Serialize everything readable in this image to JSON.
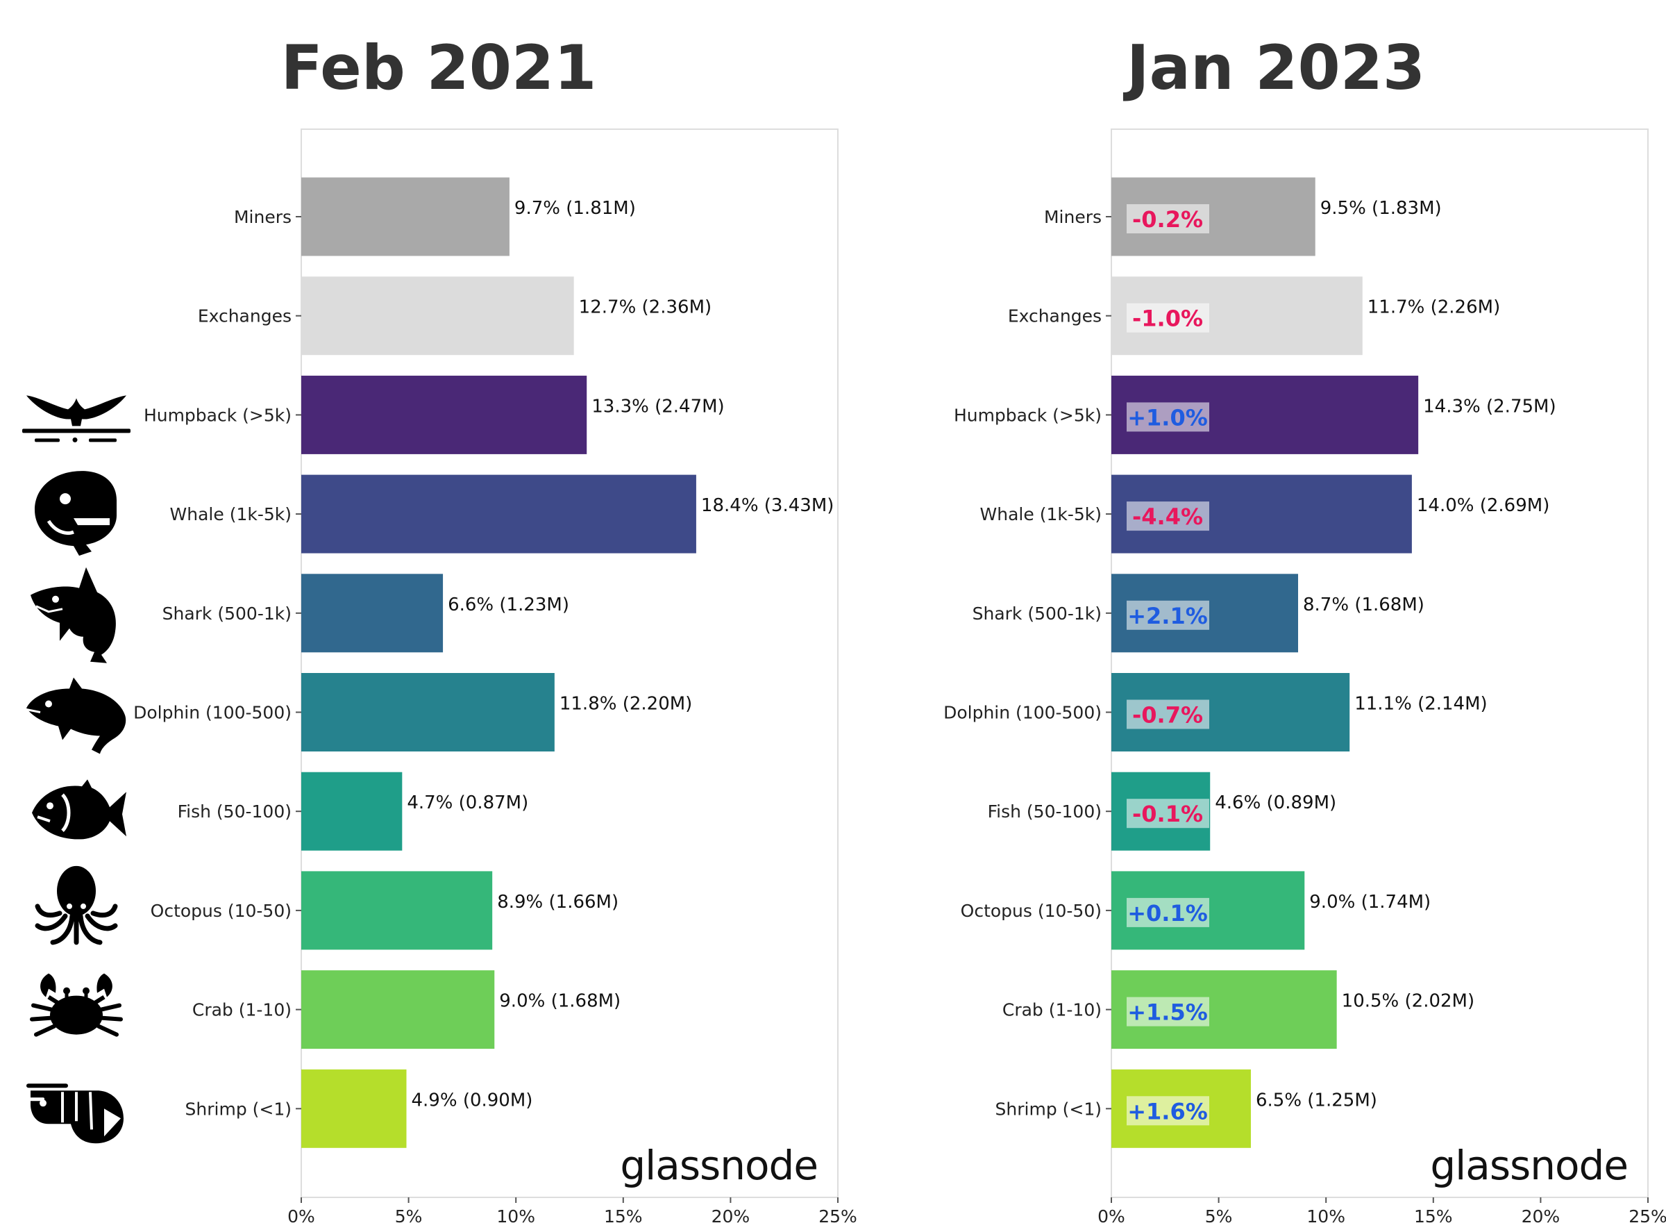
{
  "chart_data": [
    {
      "type": "bar",
      "orientation": "horizontal",
      "title": "Feb 2021",
      "categories": [
        "Miners",
        "Exchanges",
        "Humpback (>5k)",
        "Whale (1k-5k)",
        "Shark (500-1k)",
        "Dolphin (100-500)",
        "Fish (50-100)",
        "Octopus (10-50)",
        "Crab (1-10)",
        "Shrimp (<1)"
      ],
      "values": [
        9.7,
        12.7,
        13.3,
        18.4,
        6.6,
        11.8,
        4.7,
        8.9,
        9.0,
        4.9
      ],
      "data_labels": [
        "9.7% (1.81M)",
        "12.7% (2.36M)",
        "13.3% (2.47M)",
        "18.4% (3.43M)",
        "6.6% (1.23M)",
        "11.8% (2.20M)",
        "4.7% (0.87M)",
        "8.9% (1.66M)",
        "9.0% (1.68M)",
        "4.9% (0.90M)"
      ],
      "xlim": [
        0,
        25
      ],
      "xticks": [
        "0%",
        "5%",
        "10%",
        "15%",
        "20%",
        "25%"
      ],
      "watermark": "glassnode"
    },
    {
      "type": "bar",
      "orientation": "horizontal",
      "title": "Jan 2023",
      "categories": [
        "Miners",
        "Exchanges",
        "Humpback (>5k)",
        "Whale (1k-5k)",
        "Shark (500-1k)",
        "Dolphin (100-500)",
        "Fish (50-100)",
        "Octopus (10-50)",
        "Crab (1-10)",
        "Shrimp (<1)"
      ],
      "values": [
        9.5,
        11.7,
        14.3,
        14.0,
        8.7,
        11.1,
        4.6,
        9.0,
        10.5,
        6.5
      ],
      "data_labels": [
        "9.5% (1.83M)",
        "11.7% (2.26M)",
        "14.3% (2.75M)",
        "14.0% (2.69M)",
        "8.7% (1.68M)",
        "11.1% (2.14M)",
        "4.6% (0.89M)",
        "9.0% (1.74M)",
        "10.5% (2.02M)",
        "6.5% (1.25M)"
      ],
      "changes": [
        "-0.2%",
        "-1.0%",
        "+1.0%",
        "-4.4%",
        "+2.1%",
        "-0.7%",
        "-0.1%",
        "+0.1%",
        "+1.5%",
        "+1.6%"
      ],
      "xlim": [
        0,
        25
      ],
      "xticks": [
        "0%",
        "5%",
        "10%",
        "15%",
        "20%",
        "25%"
      ],
      "watermark": "glassnode"
    }
  ],
  "bar_colors": [
    "#a9a9a9",
    "#dcdcdc",
    "#4a2876",
    "#3e4a89",
    "#31688e",
    "#26828e",
    "#1f9e89",
    "#35b779",
    "#6ece58",
    "#b5de2b"
  ],
  "change_colors": {
    "negative": "#e8175d",
    "positive": "#1f5ce0"
  },
  "icons": [
    "",
    "",
    "humpback-whale-tail-icon",
    "whale-icon",
    "shark-icon",
    "dolphin-icon",
    "fish-icon",
    "octopus-icon",
    "crab-icon",
    "shrimp-icon"
  ]
}
